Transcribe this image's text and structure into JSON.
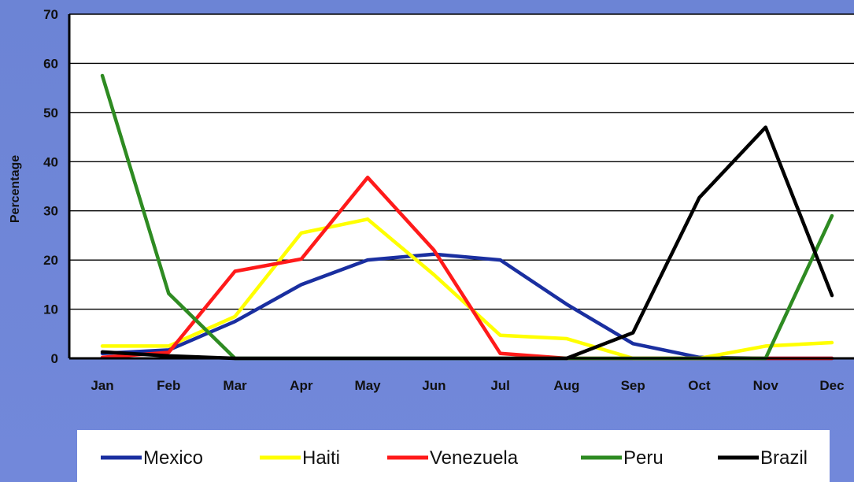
{
  "chart_data": {
    "type": "line",
    "title": "",
    "xlabel": "",
    "ylabel": "Percentage",
    "ylim": [
      0,
      70
    ],
    "yticks": [
      "0",
      "10",
      "20",
      "30",
      "40",
      "50",
      "60",
      "70"
    ],
    "grid": true,
    "legend_position": "bottom",
    "categories": [
      "Jan",
      "Feb",
      "Mar",
      "Apr",
      "May",
      "Jun",
      "Jul",
      "Aug",
      "Sep",
      "Oct",
      "Nov",
      "Dec"
    ],
    "series": [
      {
        "name": "Mexico",
        "color": "#1a2fa0",
        "values": [
          1.0,
          1.7,
          7.5,
          15.0,
          20.0,
          21.2,
          20.0,
          11.0,
          3.0,
          0.2,
          0.0,
          0.0
        ]
      },
      {
        "name": "Haiti",
        "color": "#ffff00",
        "values": [
          2.5,
          2.5,
          8.5,
          25.5,
          28.3,
          17.0,
          4.7,
          4.0,
          0.0,
          0.0,
          2.5,
          3.2
        ]
      },
      {
        "name": "Venezuela",
        "color": "#ff1a1a",
        "values": [
          0.2,
          1.2,
          17.7,
          20.2,
          36.8,
          22.0,
          1.0,
          0.0,
          0.0,
          0.0,
          0.0,
          0.0
        ]
      },
      {
        "name": "Peru",
        "color": "#2e8b22",
        "values": [
          57.5,
          13.2,
          0.0,
          0.0,
          0.0,
          0.0,
          0.0,
          0.0,
          0.0,
          0.0,
          0.0,
          29.0
        ]
      },
      {
        "name": "Brazil",
        "color": "#000000",
        "values": [
          1.3,
          0.5,
          0.0,
          0.0,
          0.0,
          0.0,
          0.0,
          0.0,
          5.2,
          32.7,
          47.0,
          12.8
        ]
      }
    ]
  }
}
